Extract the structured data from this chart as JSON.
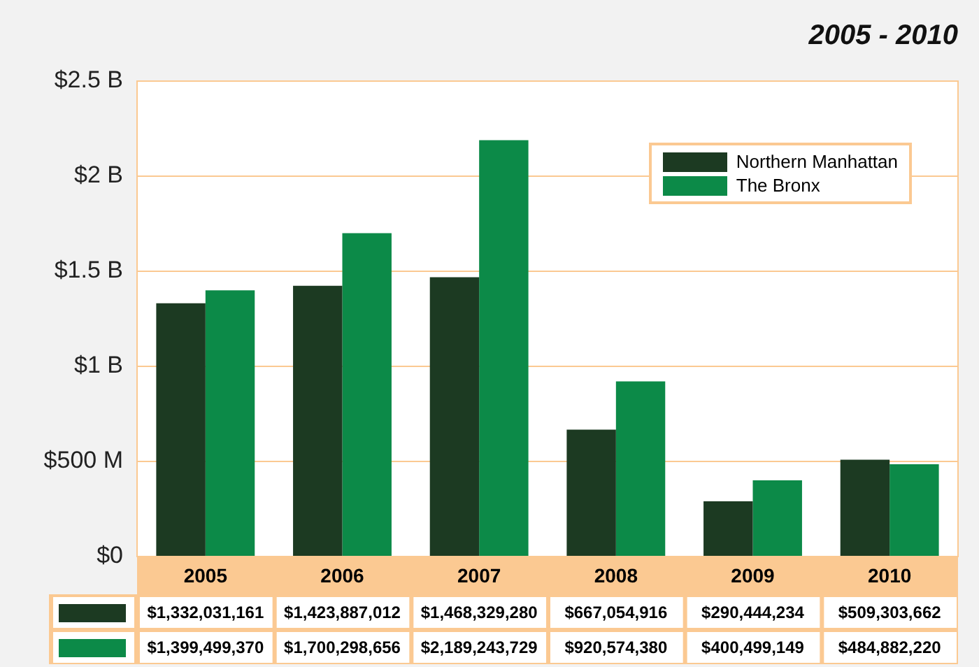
{
  "chart_data": {
    "type": "bar",
    "title": "2005 - 2010",
    "categories": [
      "2005",
      "2006",
      "2007",
      "2008",
      "2009",
      "2010"
    ],
    "series": [
      {
        "name": "Northern Manhattan",
        "color": "#1c3a22",
        "values": [
          1332031161,
          1423887012,
          1468329280,
          667054916,
          290444234,
          509303662
        ],
        "value_labels": [
          "$1,332,031,161",
          "$1,423,887,012",
          "$1,468,329,280",
          "$667,054,916",
          "$290,444,234",
          "$509,303,662"
        ]
      },
      {
        "name": "The Bronx",
        "color": "#0c8a48",
        "values": [
          1399499370,
          1700298656,
          2189243729,
          920574380,
          400499149,
          484882220
        ],
        "value_labels": [
          "$1,399,499,370",
          "$1,700,298,656",
          "$2,189,243,729",
          "$920,574,380",
          "$400,499,149",
          "$484,882,220"
        ]
      }
    ],
    "ylim": [
      0,
      2500000000
    ],
    "yticks": [
      {
        "value": 0,
        "label": "$0"
      },
      {
        "value": 500000000,
        "label": "$500 M"
      },
      {
        "value": 1000000000,
        "label": "$1 B"
      },
      {
        "value": 1500000000,
        "label": "$1.5 B"
      },
      {
        "value": 2000000000,
        "label": "$2 B"
      },
      {
        "value": 2500000000,
        "label": "$2.5 B"
      }
    ],
    "grid": "y",
    "legend": "top right"
  }
}
